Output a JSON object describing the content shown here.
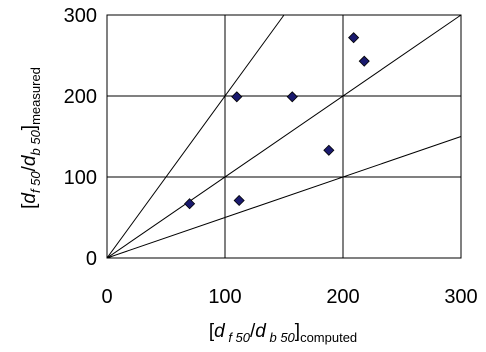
{
  "chart_data": {
    "type": "scatter",
    "xlim": [
      0,
      300
    ],
    "ylim": [
      0,
      300
    ],
    "x_ticks": [
      "0",
      "100",
      "200",
      "300"
    ],
    "y_ticks": [
      "0",
      "100",
      "200",
      "300"
    ],
    "grid": true,
    "marker_color": "#1a1a6e",
    "xlabel": {
      "open": "[",
      "d": "d",
      "f50": " f 50",
      "slash": "/",
      "b50": " b 50",
      "close": "]",
      "sub": "computed"
    },
    "ylabel": {
      "open": "[",
      "d": "d",
      "f50": "f 50",
      "slash": "/",
      "b50": "b 50",
      "close": "]",
      "sub": "measured"
    },
    "points": [
      {
        "x": 70,
        "y": 67
      },
      {
        "x": 110,
        "y": 199
      },
      {
        "x": 112,
        "y": 71
      },
      {
        "x": 157,
        "y": 199
      },
      {
        "x": 188,
        "y": 133
      },
      {
        "x": 209,
        "y": 272
      },
      {
        "x": 218,
        "y": 243
      }
    ],
    "reference_lines": [
      {
        "slope": 2
      },
      {
        "slope": 1
      },
      {
        "slope": 0.5
      }
    ]
  }
}
